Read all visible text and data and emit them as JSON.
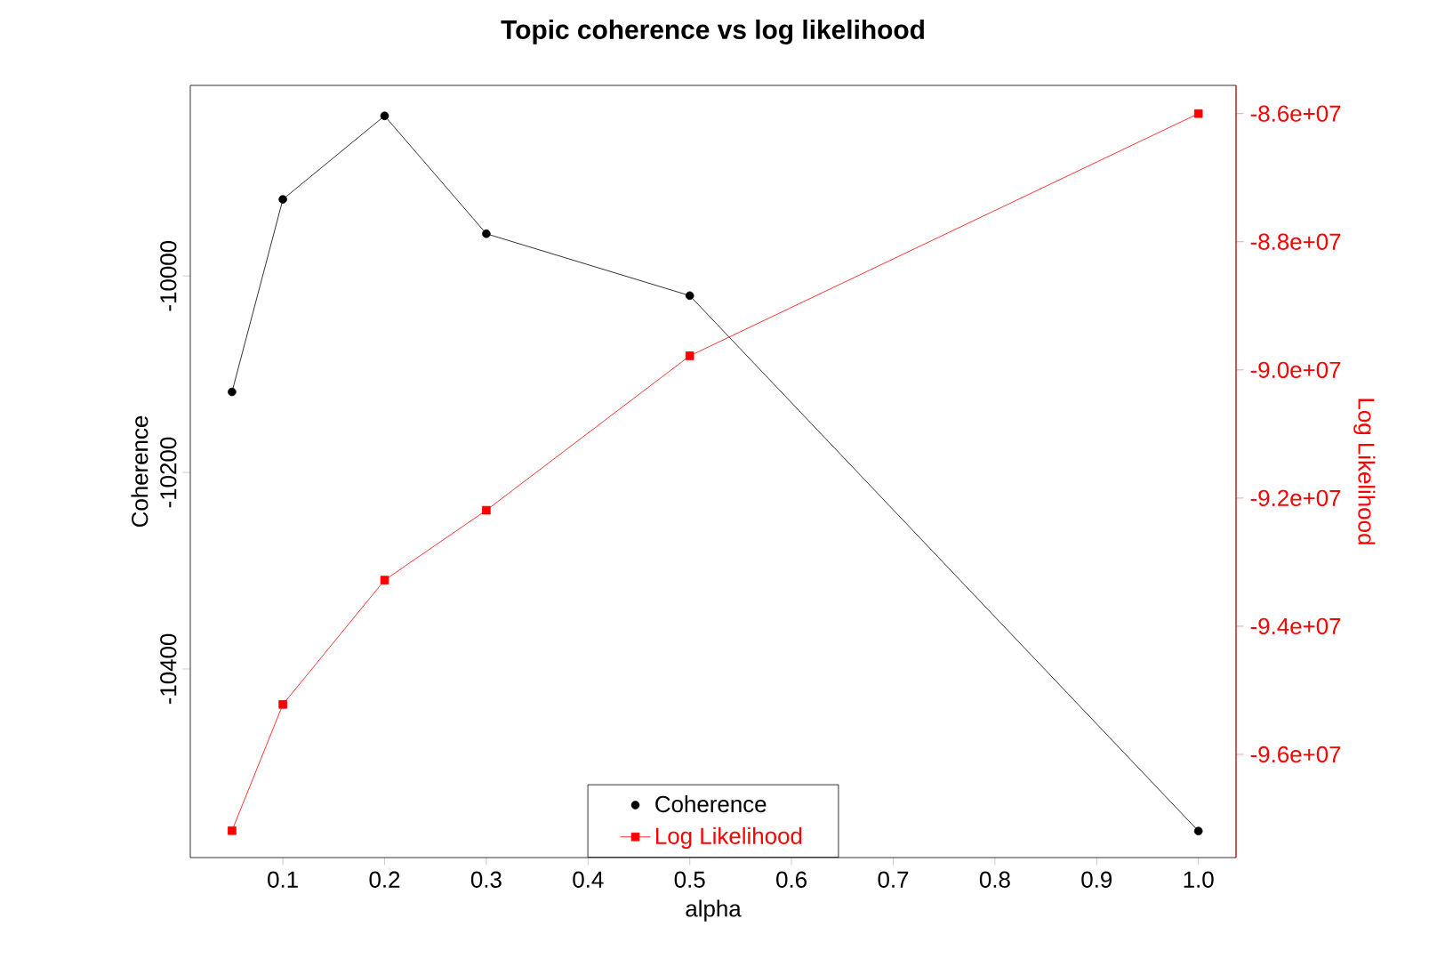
{
  "chart_data": {
    "type": "line",
    "title": "Topic coherence vs log likelihood",
    "xlabel": "alpha",
    "ylabel": "Coherence",
    "y2label": "Log Likelihood",
    "x": [
      0.05,
      0.1,
      0.2,
      0.3,
      0.5,
      1.0
    ],
    "series": [
      {
        "name": "Coherence",
        "color": "#000000",
        "marker": "circle",
        "values": [
          -10118,
          -9922,
          -9837,
          -9957,
          -10020,
          -10565
        ]
      },
      {
        "name": "Log Likelihood",
        "color": "#ff0000",
        "marker": "square",
        "axis": "y2",
        "values": [
          -97190000,
          -95220000,
          -93280000,
          -92190000,
          -89780000,
          -86000000
        ]
      }
    ],
    "xlim": [
      0.009,
      1.037
    ],
    "ylim": [
      -10592,
      -9806
    ],
    "y2lim": [
      -97610000,
      -85560000
    ],
    "xticks": [
      0.1,
      0.2,
      0.3,
      0.4,
      0.5,
      0.6,
      0.7,
      0.8,
      0.9,
      {
        "value": 1.0,
        "label": "1.0"
      }
    ],
    "yticks": [
      -10400,
      -10200,
      -10000
    ],
    "y2ticks": [
      {
        "value": -96000000,
        "label": "-9.6e+07"
      },
      {
        "value": -94000000,
        "label": "-9.4e+07"
      },
      {
        "value": -92000000,
        "label": "-9.2e+07"
      },
      {
        "value": -90000000,
        "label": "-9.0e+07"
      },
      {
        "value": -88000000,
        "label": "-8.8e+07"
      },
      {
        "value": -86000000,
        "label": "-8.6e+07"
      }
    ],
    "legend": "bottom",
    "grid": false,
    "line_style": "solid"
  }
}
